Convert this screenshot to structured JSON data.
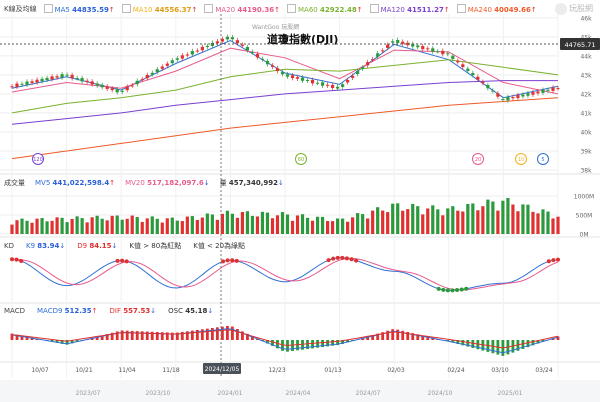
{
  "brand_watermark": "WantGoo 玩股網",
  "logo_text": "玩股網",
  "chart_title": "道瓊指數(DJI)",
  "price_panel": {
    "name": "K線及均線",
    "ma": [
      {
        "label": "MA5",
        "value": "44835.59",
        "dir": "↑",
        "color": "#2f6fd6"
      },
      {
        "label": "MA10",
        "value": "44556.37",
        "dir": "↑",
        "color": "#f2b21b"
      },
      {
        "label": "MA20",
        "value": "44190.36",
        "dir": "↑",
        "color": "#e85a8c"
      },
      {
        "label": "MA60",
        "value": "42922.48",
        "dir": "↑",
        "color": "#7ab22e"
      },
      {
        "label": "MA120",
        "value": "41511.27",
        "dir": "↑",
        "color": "#7a3fd0"
      },
      {
        "label": "MA240",
        "value": "40049.66",
        "dir": "↑",
        "color": "#ee5a2a"
      }
    ],
    "last_price_badge": "44765.71",
    "y_ticks": [
      "46k",
      "45k",
      "44k",
      "43k",
      "42k",
      "41k",
      "40k",
      "39k",
      "38k"
    ],
    "markers": [
      "120",
      "60",
      "20",
      "10",
      "5"
    ]
  },
  "volume_panel": {
    "name": "成交量",
    "items": [
      {
        "label": "MV5",
        "value": "441,022,598.4",
        "dir": "↑",
        "color": "#2f6fd6"
      },
      {
        "label": "MV20",
        "value": "517,182,097.6",
        "dir": "↓",
        "color": "#e85a8c"
      },
      {
        "label": "量",
        "value": "457,340,992",
        "dir": "↓",
        "color": "#333333"
      }
    ],
    "y_ticks": [
      "1000M",
      "500M",
      "0M"
    ]
  },
  "kd_panel": {
    "name": "KD",
    "items": [
      {
        "label": "K9",
        "value": "83.94",
        "dir": "↓",
        "color": "#2f6fd6"
      },
      {
        "label": "D9",
        "value": "84.15",
        "dir": "↓",
        "color": "#e0302f"
      }
    ],
    "notes": [
      "K值 > 80為紅點",
      "K值 < 20為綠點"
    ]
  },
  "macd_panel": {
    "name": "MACD",
    "items": [
      {
        "label": "MACD9",
        "value": "512.35",
        "dir": "↑",
        "color": "#2f6fd6"
      },
      {
        "label": "DIF",
        "value": "557.53",
        "dir": "↓",
        "color": "#e0302f"
      },
      {
        "label": "OSC",
        "value": "45.18",
        "dir": "↓",
        "color": "#333333"
      }
    ]
  },
  "cursor_date": "2024/12/05",
  "x_date_labels": [
    "10/07",
    "10/21",
    "11/04",
    "11/18",
    "12/23",
    "01/13",
    "02/03",
    "02/24",
    "03/10",
    "03/24"
  ],
  "timeline_labels": [
    "2023/07",
    "2023/10",
    "2024/01",
    "2024/04",
    "2024/07",
    "2024/10",
    "2025/01"
  ],
  "chart_data": {
    "type": "line",
    "title": "道瓊指數(DJI)",
    "ylabel": "",
    "ylim": [
      38000,
      46200
    ],
    "x": [
      "10/07",
      "10/21",
      "11/04",
      "11/18",
      "12/05",
      "12/23",
      "01/13",
      "02/03",
      "02/24",
      "03/10",
      "03/24"
    ],
    "series": [
      {
        "name": "K線",
        "values": [
          42400,
          43000,
          42100,
          43800,
          45000,
          43000,
          42300,
          44800,
          44100,
          41700,
          42300
        ]
      },
      {
        "name": "MA5",
        "values": [
          42300,
          42900,
          42200,
          43600,
          44800,
          43100,
          42500,
          44600,
          43800,
          41800,
          42400
        ]
      },
      {
        "name": "MA20",
        "values": [
          42100,
          42600,
          42300,
          43200,
          44400,
          43900,
          42800,
          44300,
          44200,
          42600,
          42000
        ]
      },
      {
        "name": "MA60",
        "values": [
          41000,
          41500,
          41800,
          42200,
          42900,
          43300,
          43200,
          43500,
          43800,
          43400,
          43000
        ]
      },
      {
        "name": "MA120",
        "values": [
          40400,
          40700,
          41000,
          41400,
          41700,
          42000,
          42200,
          42400,
          42600,
          42700,
          42700
        ]
      },
      {
        "name": "MA240",
        "values": [
          38600,
          39000,
          39400,
          39800,
          40200,
          40500,
          40800,
          41100,
          41400,
          41600,
          41800
        ]
      }
    ],
    "volume_M": [
      330,
      380,
      420,
      360,
      520,
      480,
      340,
      700,
      600,
      820,
      450
    ],
    "kd_k": [
      85,
      30,
      82,
      25,
      83,
      38,
      88,
      60,
      20,
      35,
      84
    ],
    "macd_osc": [
      80,
      -60,
      120,
      90,
      180,
      -150,
      -60,
      140,
      -20,
      -200,
      45
    ]
  }
}
